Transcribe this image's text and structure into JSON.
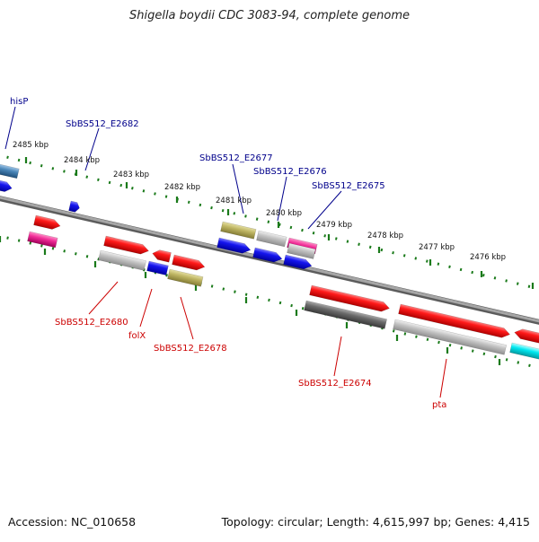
{
  "title": "Shigella boydii CDC 3083-94, complete genome",
  "footer": {
    "accession": "Accession: NC_010658",
    "summary": "Topology: circular; Length: 4,615,997 bp; Genes: 4,415"
  },
  "kbp_labels": [
    "2485 kbp",
    "2484 kbp",
    "2483 kbp",
    "2482 kbp",
    "2481 kbp",
    "2480 kbp",
    "2479 kbp",
    "2478 kbp",
    "2477 kbp",
    "2476 kbp"
  ],
  "gene_labels": {
    "top": [
      "hisP",
      "SbBS512_E2682",
      "SbBS512_E2677",
      "SbBS512_E2676",
      "SbBS512_E2675"
    ],
    "bottom": [
      "SbBS512_E2680",
      "folX",
      "SbBS512_E2678",
      "SbBS512_E2674",
      "pta"
    ]
  },
  "colors": {
    "label_top": "#00008b",
    "label_bottom": "#cc0000",
    "tick": "#1a7a1a",
    "backbone": "#888888",
    "red": "#ee1111",
    "blue": "#1111ee",
    "gray": "#b5b5b5",
    "darkgray": "#666666",
    "olive": "#b8b060",
    "magenta": "#e8359a",
    "steel": "#4682b4",
    "cyan": "#00e5ee"
  }
}
